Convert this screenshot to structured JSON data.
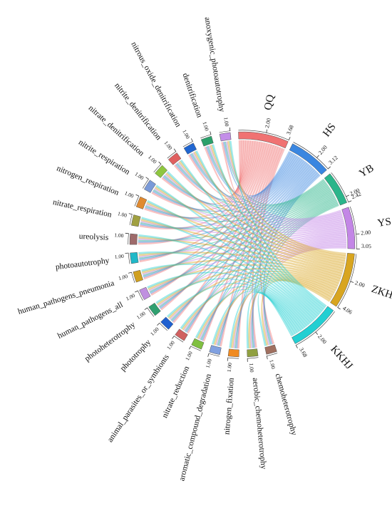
{
  "chart_data": {
    "type": "chord",
    "groups": {
      "categories": [
        "QQ",
        "HS",
        "YB",
        "YS",
        "ZKHJ",
        "KKHJ"
      ],
      "values": [
        3.68,
        3.12,
        2.42,
        3.05,
        4.06,
        3.68
      ],
      "colors": [
        "#f07272",
        "#3a86e0",
        "#2bb58a",
        "#c386e6",
        "#d8a520",
        "#22cfd2"
      ]
    },
    "targets": {
      "categories": [
        "chemoheterotrophy",
        "aerobic_chemoheterotrophy",
        "nitrogen_fixation",
        "aromatic_compound_degradation",
        "nitrate_reduction",
        "animal_parasites_or_symbionts",
        "phototrophy",
        "photoheterotrophy",
        "human_pathogens_all",
        "human_pathogens_pneumonia",
        "photoautotrophy",
        "ureolysis",
        "nitrate_respiration",
        "nitrogen_respiration",
        "nitrite_respiration",
        "nitrate_denitrification",
        "nitrite_denitrification",
        "nitrous_oxide_denitrification",
        "denitrification",
        "anoxygenic_photoautotrophy"
      ],
      "values": [
        1,
        1,
        1,
        1,
        1,
        1,
        1,
        1,
        1,
        1,
        1,
        1,
        1,
        1,
        1,
        1,
        1,
        1,
        1,
        1
      ],
      "value_labels": [
        "1.00",
        "1.00",
        "1.00",
        "1.00",
        "1.00",
        "1.00",
        "1.00",
        "1.00",
        "1.00",
        "1.00",
        "1.00",
        "1.00",
        "1.00",
        "1.00",
        "1.00",
        "1.00",
        "1.00",
        "1.00",
        "1.00",
        "1.00"
      ],
      "colors": [
        "#a07060",
        "#90a040",
        "#f08a20",
        "#80a0e0",
        "#80c040",
        "#d06060",
        "#2060d0",
        "#30a070",
        "#c090e0",
        "#d0a020",
        "#20b8c8",
        "#9e6a6a",
        "#a0a040",
        "#e08a30",
        "#7a9ad8",
        "#8ec63f",
        "#e06060",
        "#2166d0",
        "#2aa06a",
        "#c38ee8"
      ]
    },
    "group_ticks": [
      {
        "value": 2,
        "label": "2.00"
      }
    ]
  }
}
